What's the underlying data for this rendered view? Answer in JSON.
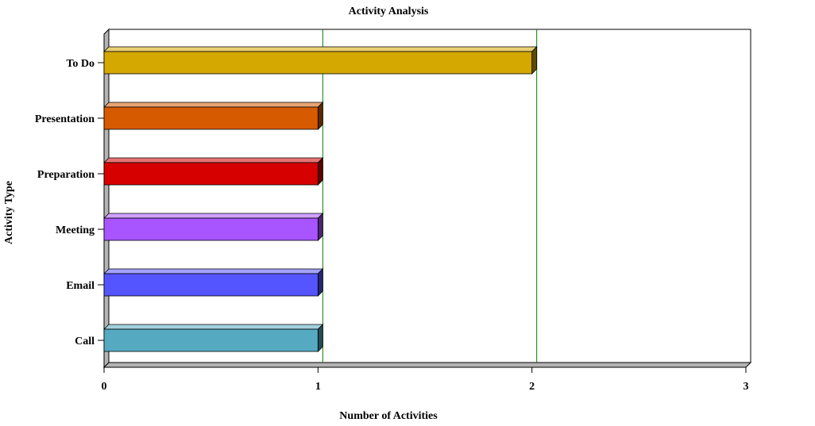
{
  "chart_data": {
    "type": "bar",
    "orientation": "horizontal",
    "title": "Activity Analysis",
    "xlabel": "Number of Activities",
    "ylabel": "Activity Type",
    "categories": [
      "To Do",
      "Presentation",
      "Preparation",
      "Meeting",
      "Email",
      "Call"
    ],
    "values": [
      2,
      1,
      1,
      1,
      1,
      1
    ],
    "colors": [
      "#d4a800",
      "#d65a00",
      "#d60000",
      "#a855ff",
      "#5555ff",
      "#55aac2"
    ],
    "xlim": [
      0,
      3
    ],
    "xticks": [
      0,
      1,
      2,
      3
    ],
    "gridlines": "vertical",
    "gridline_color": "#008000",
    "style": "3d",
    "legend": "none"
  }
}
